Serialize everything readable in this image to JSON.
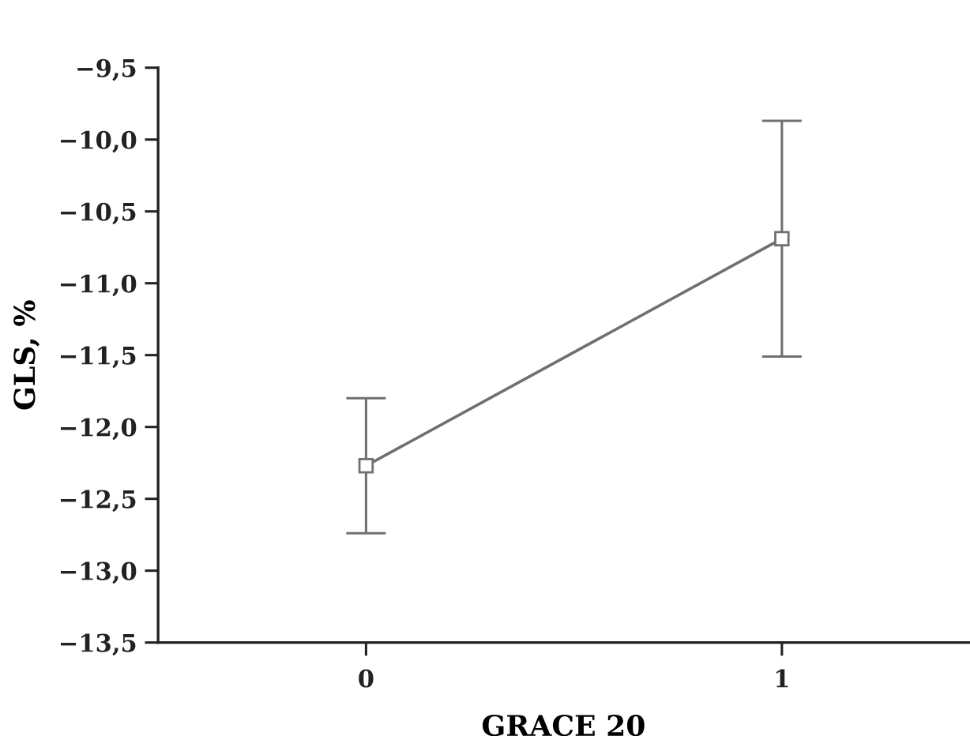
{
  "chart_data": {
    "type": "line",
    "xlabel": "GRACE 20",
    "ylabel": "GLS, %",
    "categories": [
      "0",
      "1"
    ],
    "series": [
      {
        "color": "#707070",
        "values": [
          -12.27,
          -10.69
        ],
        "errors": [
          0.47,
          0.82
        ]
      }
    ],
    "ylim": [
      -13.5,
      -9.5
    ],
    "yticks": [
      {
        "value": -13.5,
        "label": "−13,5"
      },
      {
        "value": -13.0,
        "label": "−13,0"
      },
      {
        "value": -12.5,
        "label": "−12,5"
      },
      {
        "value": -12.0,
        "label": "−12,0"
      },
      {
        "value": -11.5,
        "label": "−11,5"
      },
      {
        "value": -11.0,
        "label": "−11,0"
      },
      {
        "value": -10.5,
        "label": "−10,5"
      },
      {
        "value": -10.0,
        "label": "−10,0"
      },
      {
        "value": -9.5,
        "label": "−9,5"
      }
    ],
    "marker": "square",
    "line_style": "solid",
    "grid": false,
    "legend": false
  }
}
